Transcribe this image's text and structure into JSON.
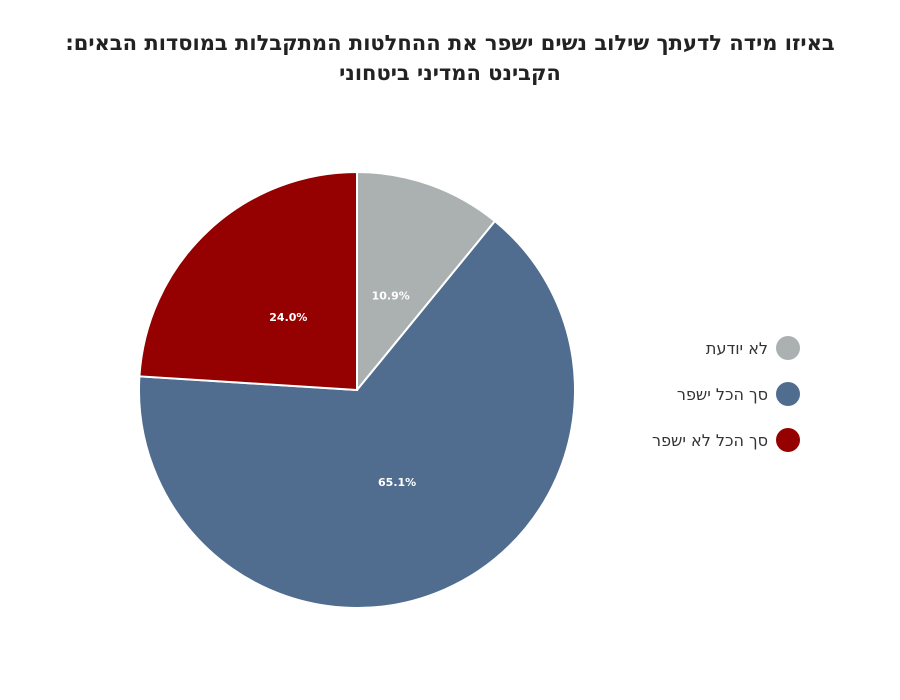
{
  "chart_data": {
    "type": "pie",
    "title_lines": [
      "באיזו מידה לדעתך שילוב נשים ישפר את ההחלטות המתקבלות במוסדות הבאים:",
      "הקבינט המדיני ביטחוני"
    ],
    "slices": [
      {
        "label": "לא יודעת",
        "value": 10.9,
        "display": "10.9%",
        "color": "#abb0b0"
      },
      {
        "label": "סך הכל ישפר",
        "value": 65.1,
        "display": "65.1%",
        "color": "#506d8f"
      },
      {
        "label": "סך הכל לא ישפר",
        "value": 24.0,
        "display": "24.0%",
        "color": "#950000"
      }
    ],
    "legend_position": "right"
  }
}
